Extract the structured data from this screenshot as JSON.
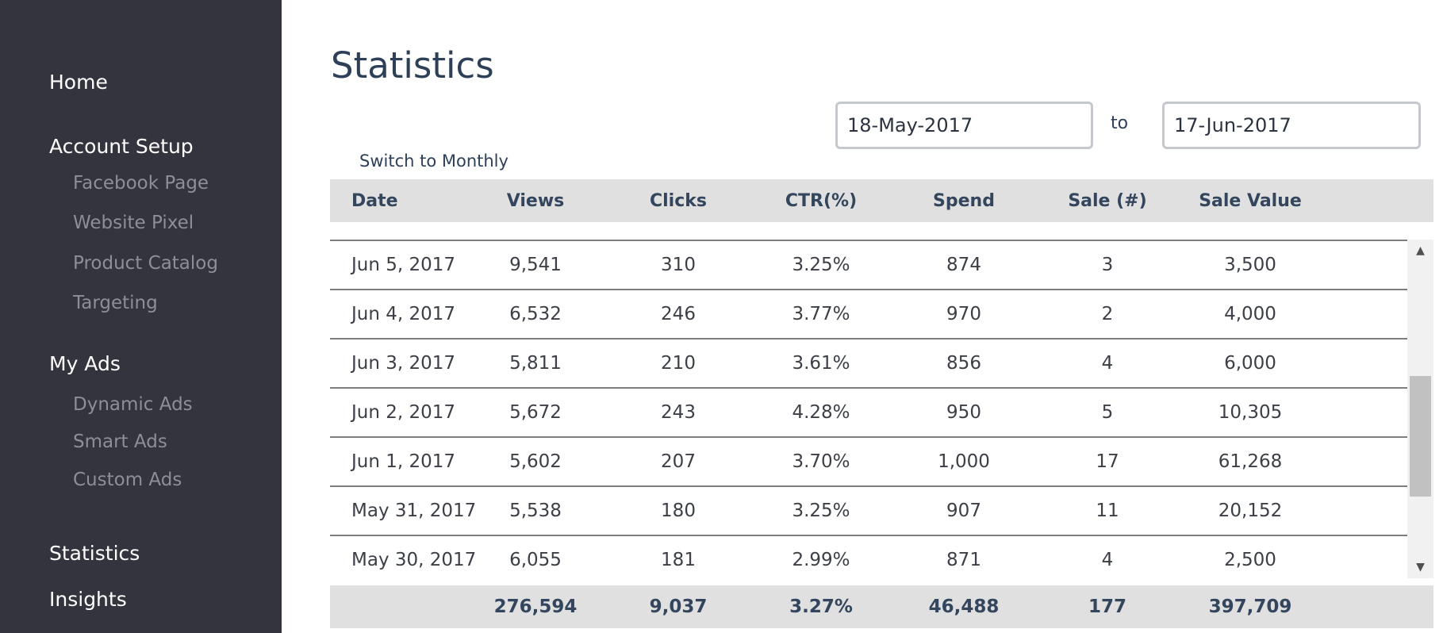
{
  "sidebar": {
    "home": "Home",
    "account_setup": "Account Setup",
    "account_items": [
      "Facebook Page",
      "Website Pixel",
      "Product Catalog",
      "Targeting"
    ],
    "my_ads": "My Ads",
    "ads_items": [
      "Dynamic Ads",
      "Smart Ads",
      "Custom Ads"
    ],
    "statistics": "Statistics",
    "insights": "Insights"
  },
  "page": {
    "title": "Statistics",
    "date_from": "18-May-2017",
    "to_label": "to",
    "date_to": "17-Jun-2017",
    "switch_label": "Switch to Monthly"
  },
  "table": {
    "columns": [
      "Date",
      "Views",
      "Clicks",
      "CTR(%)",
      "Spend",
      "Sale (#)",
      "Sale Value"
    ],
    "rows": [
      [
        "Jun 5, 2017",
        "9,541",
        "310",
        "3.25%",
        "874",
        "3",
        "3,500"
      ],
      [
        "Jun 4, 2017",
        "6,532",
        "246",
        "3.77%",
        "970",
        "2",
        "4,000"
      ],
      [
        "Jun 3, 2017",
        "5,811",
        "210",
        "3.61%",
        "856",
        "4",
        "6,000"
      ],
      [
        "Jun 2, 2017",
        "5,672",
        "243",
        "4.28%",
        "950",
        "5",
        "10,305"
      ],
      [
        "Jun 1, 2017",
        "5,602",
        "207",
        "3.70%",
        "1,000",
        "17",
        "61,268"
      ],
      [
        "May 31, 2017",
        "5,538",
        "180",
        "3.25%",
        "907",
        "11",
        "20,152"
      ],
      [
        "May 30, 2017",
        "6,055",
        "181",
        "2.99%",
        "871",
        "4",
        "2,500"
      ]
    ],
    "totals": [
      "",
      "276,594",
      "9,037",
      "3.27%",
      "46,488",
      "177",
      "397,709"
    ]
  },
  "icons": {
    "scroll_up": "scroll-up-arrow-icon",
    "scroll_down": "scroll-down-arrow-icon"
  },
  "colors": {
    "sidebar_bg": "#34343e",
    "nav_primary": "#ffffff",
    "nav_secondary": "#8e8e96",
    "title": "#2e3f58",
    "table_header_bg": "#e0e0e0",
    "row_border": "#7e7e7e"
  }
}
